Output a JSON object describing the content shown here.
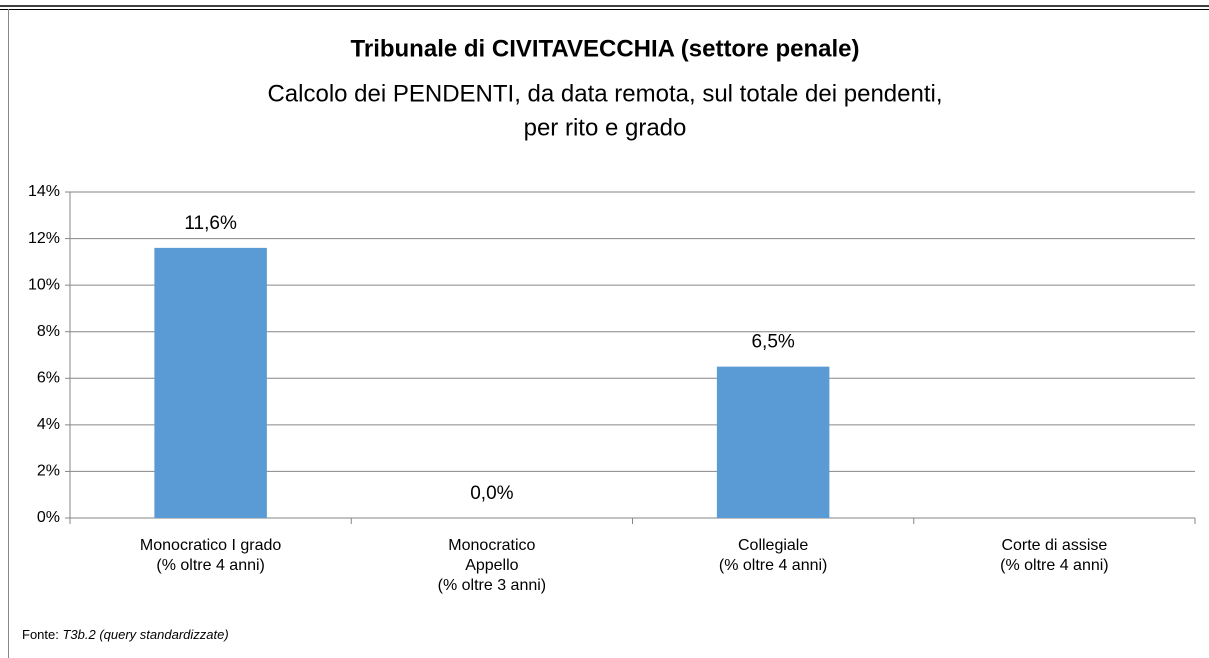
{
  "chart_data": {
    "type": "bar",
    "title": "Tribunale di CIVITAVECCHIA (settore penale)",
    "subtitle": [
      "Calcolo dei PENDENTI, da data remota, sul totale dei pendenti,",
      "per rito e grado"
    ],
    "categories": [
      [
        "Monocratico I grado",
        "(% oltre 4 anni)"
      ],
      [
        "Monocratico",
        "Appello",
        "(% oltre 3 anni)"
      ],
      [
        "Collegiale",
        "(% oltre 4 anni)"
      ],
      [
        "Corte di assise",
        "(% oltre 4 anni)"
      ]
    ],
    "values": [
      11.6,
      0.0,
      6.5,
      null
    ],
    "value_labels": [
      "11,6%",
      "0,0%",
      "6,5%",
      null
    ],
    "color": "#5b9bd5",
    "ylim": [
      0,
      14
    ],
    "yticks": [
      {
        "value": 0,
        "label": "0%"
      },
      {
        "value": 2,
        "label": "2%"
      },
      {
        "value": 4,
        "label": "4%"
      },
      {
        "value": 6,
        "label": "6%"
      },
      {
        "value": 8,
        "label": "8%"
      },
      {
        "value": 10,
        "label": "10%"
      },
      {
        "value": 12,
        "label": "12%"
      },
      {
        "value": 14,
        "label": "14%"
      }
    ],
    "grid": true,
    "source_label": "Fonte:",
    "source": "T3b.2 (query standardizzate)"
  }
}
